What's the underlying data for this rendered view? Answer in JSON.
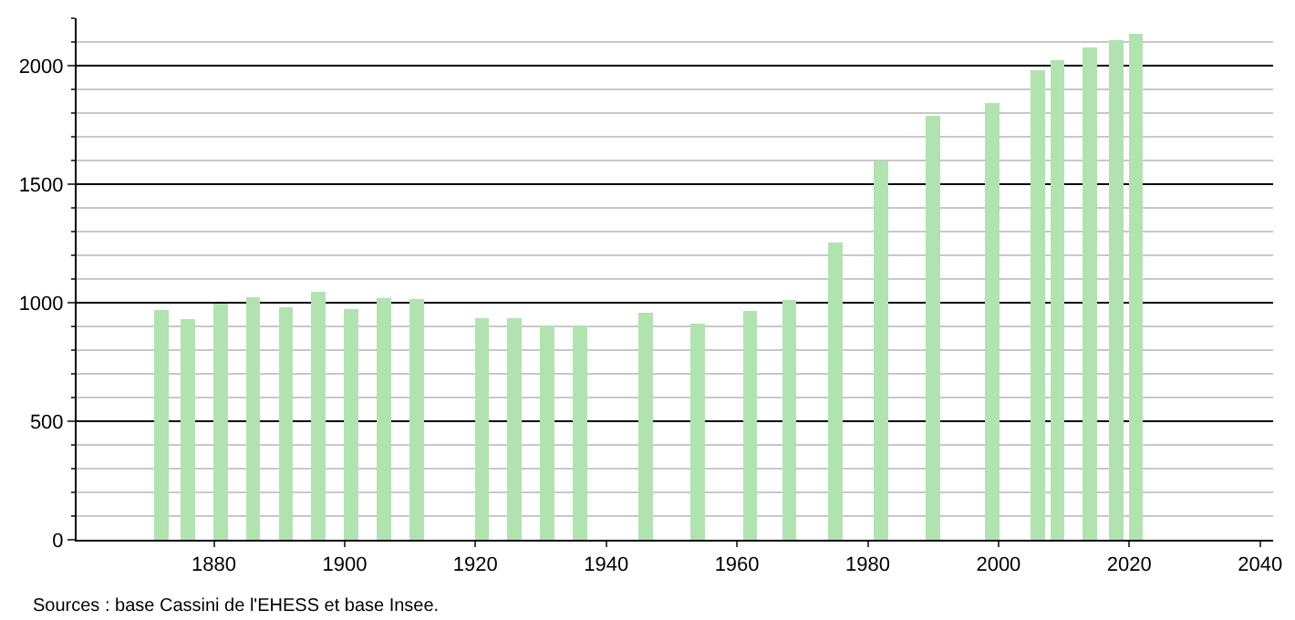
{
  "chart_data": {
    "type": "bar",
    "x": [
      1872,
      1876,
      1881,
      1886,
      1891,
      1896,
      1901,
      1906,
      1911,
      1921,
      1926,
      1931,
      1936,
      1946,
      1954,
      1962,
      1968,
      1975,
      1982,
      1990,
      1999,
      2006,
      2009,
      2014,
      2018,
      2021
    ],
    "values": [
      970,
      932,
      995,
      1025,
      980,
      1045,
      972,
      1018,
      1015,
      934,
      934,
      902,
      902,
      957,
      912,
      965,
      1013,
      1253,
      1596,
      1790,
      1841,
      1982,
      2025,
      2076,
      2106,
      2136
    ],
    "color": "#b0e3b0",
    "xlim": [
      1859,
      2042
    ],
    "xticks": [
      1880,
      1900,
      1920,
      1940,
      1960,
      1980,
      2000,
      2020,
      2040
    ],
    "ylim": [
      0,
      2200
    ],
    "yticks": [
      0,
      500,
      1000,
      1500,
      2000
    ],
    "grid": "y",
    "annotations": [
      "Sources : base Cassini de l'EHESS et base Insee."
    ]
  }
}
